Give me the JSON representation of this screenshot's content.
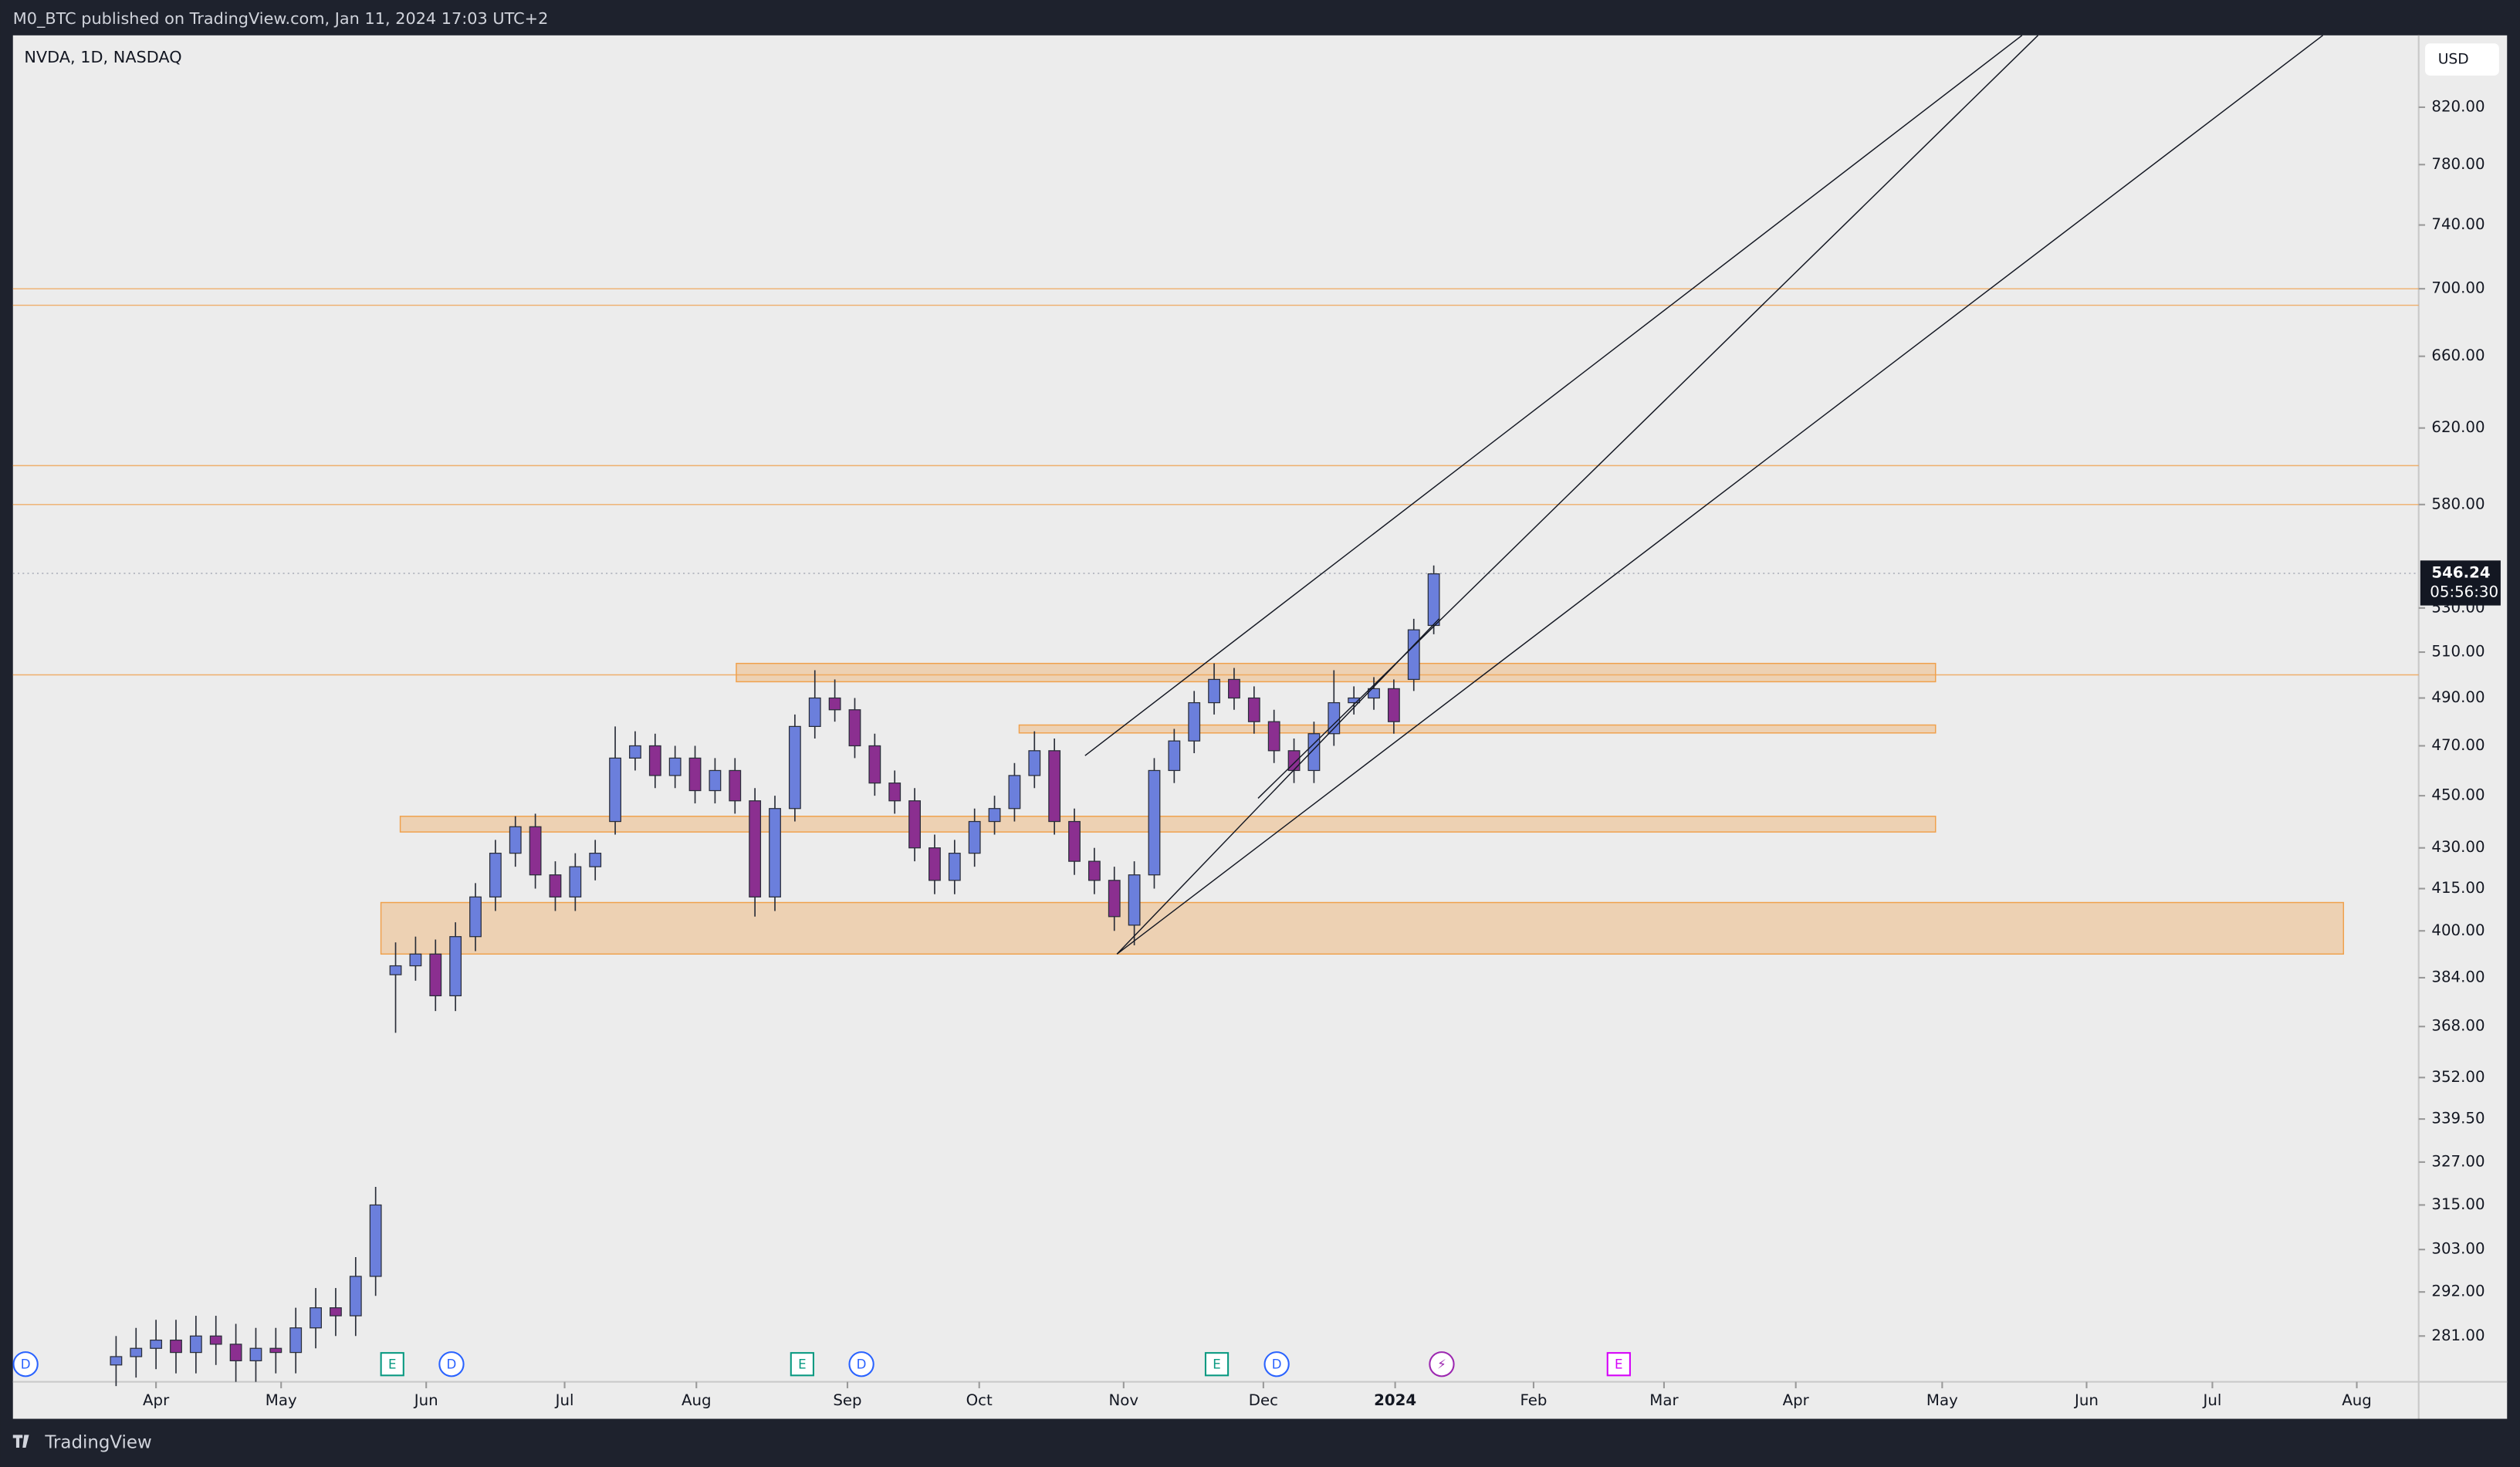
{
  "header": {
    "publisher": "M0_BTC published on TradingView.com, Jan 11, 2024 17:03 UTC+2"
  },
  "footer": {
    "brand": "TradingView"
  },
  "chart_data": {
    "type": "candlestick",
    "title": "NVDA, 1D, NASDAQ",
    "currency": "USD",
    "log_scale": true,
    "up_color": "#6b7fdc",
    "down_color": "#8b2f90",
    "x": [
      -6,
      -3,
      0,
      3,
      6,
      9,
      12,
      15,
      18,
      21,
      24,
      27,
      30,
      33,
      36,
      39,
      42,
      45,
      48,
      51,
      54,
      57,
      60,
      63,
      66,
      69,
      72,
      75,
      78,
      81,
      84,
      87,
      90,
      93,
      96,
      99,
      102,
      105,
      108,
      111,
      114,
      117,
      120,
      123,
      126,
      129,
      132,
      135,
      138,
      141,
      144,
      147,
      150,
      153,
      156,
      159,
      162,
      165,
      168,
      171,
      174,
      177,
      180,
      183,
      186,
      189,
      192
    ],
    "open": [
      274,
      276,
      278,
      280,
      277,
      281,
      279,
      275,
      278,
      277,
      283,
      288,
      286,
      296,
      385,
      388,
      392,
      378,
      398,
      412,
      428,
      438,
      420,
      412,
      423,
      440,
      465,
      470,
      458,
      465,
      452,
      460,
      448,
      412,
      445,
      478,
      490,
      485,
      470,
      455,
      448,
      430,
      418,
      428,
      440,
      445,
      458,
      468,
      440,
      425,
      418,
      402,
      420,
      460,
      472,
      488,
      498,
      490,
      480,
      468,
      460,
      475,
      488,
      490,
      494,
      498,
      522
    ],
    "high": [
      281,
      283,
      285,
      285,
      286,
      286,
      284,
      283,
      283,
      288,
      293,
      293,
      301,
      320,
      396,
      398,
      397,
      403,
      417,
      433,
      442,
      443,
      425,
      428,
      433,
      478,
      476,
      475,
      470,
      470,
      465,
      465,
      453,
      450,
      483,
      502,
      498,
      490,
      475,
      460,
      453,
      435,
      433,
      445,
      450,
      463,
      476,
      473,
      445,
      430,
      423,
      425,
      465,
      477,
      493,
      505,
      503,
      495,
      485,
      473,
      480,
      502,
      495,
      499,
      498,
      525,
      550
    ],
    "low": [
      269,
      271,
      273,
      272,
      272,
      274,
      270,
      270,
      272,
      272,
      278,
      281,
      281,
      291,
      366,
      383,
      373,
      373,
      393,
      407,
      423,
      415,
      407,
      407,
      418,
      435,
      460,
      453,
      453,
      447,
      447,
      443,
      405,
      407,
      440,
      473,
      480,
      465,
      450,
      443,
      425,
      413,
      413,
      423,
      435,
      440,
      453,
      435,
      420,
      413,
      400,
      395,
      415,
      455,
      467,
      483,
      485,
      475,
      463,
      455,
      455,
      470,
      483,
      485,
      475,
      493,
      518
    ],
    "close": [
      276,
      278,
      280,
      277,
      281,
      279,
      275,
      278,
      277,
      283,
      288,
      286,
      296,
      315,
      388,
      392,
      378,
      398,
      412,
      428,
      438,
      420,
      412,
      423,
      428,
      465,
      470,
      458,
      465,
      452,
      460,
      448,
      412,
      445,
      478,
      490,
      485,
      470,
      455,
      448,
      430,
      418,
      428,
      440,
      445,
      458,
      468,
      440,
      425,
      418,
      405,
      420,
      460,
      472,
      488,
      498,
      490,
      480,
      468,
      460,
      475,
      488,
      490,
      494,
      480,
      520,
      546
    ],
    "xlim": [
      -21.5,
      340
    ],
    "xticks": [
      {
        "value": 0,
        "label": "Apr"
      },
      {
        "value": 18.8,
        "label": "May"
      },
      {
        "value": 40.6,
        "label": "Jun"
      },
      {
        "value": 61.4,
        "label": "Jul"
      },
      {
        "value": 81.2,
        "label": "Aug"
      },
      {
        "value": 103.9,
        "label": "Sep"
      },
      {
        "value": 123.7,
        "label": "Oct"
      },
      {
        "value": 145.4,
        "label": "Nov"
      },
      {
        "value": 166.4,
        "label": "Dec"
      },
      {
        "value": 186.2,
        "label": "2024"
      },
      {
        "value": 207,
        "label": "Feb"
      },
      {
        "value": 226.6,
        "label": "Mar"
      },
      {
        "value": 246.4,
        "label": "Apr"
      },
      {
        "value": 268.4,
        "label": "May"
      },
      {
        "value": 290.1,
        "label": "Jun"
      },
      {
        "value": 309,
        "label": "Jul"
      },
      {
        "value": 330.7,
        "label": "Aug"
      }
    ],
    "ylim": [
      270,
      873
    ],
    "yticks": [
      {
        "value": 820,
        "label": "820.00"
      },
      {
        "value": 780,
        "label": "780.00"
      },
      {
        "value": 740,
        "label": "740.00"
      },
      {
        "value": 700,
        "label": "700.00"
      },
      {
        "value": 660,
        "label": "660.00"
      },
      {
        "value": 620,
        "label": "620.00"
      },
      {
        "value": 580,
        "label": "580.00"
      },
      {
        "value": 530,
        "label": "530.00"
      },
      {
        "value": 510,
        "label": "510.00"
      },
      {
        "value": 490,
        "label": "490.00"
      },
      {
        "value": 470,
        "label": "470.00"
      },
      {
        "value": 450,
        "label": "450.00"
      },
      {
        "value": 430,
        "label": "430.00"
      },
      {
        "value": 415,
        "label": "415.00"
      },
      {
        "value": 400,
        "label": "400.00"
      },
      {
        "value": 384,
        "label": "384.00"
      },
      {
        "value": 368,
        "label": "368.00"
      },
      {
        "value": 352,
        "label": "352.00"
      },
      {
        "value": 339.5,
        "label": "339.50"
      },
      {
        "value": 327,
        "label": "327.00"
      },
      {
        "value": 315,
        "label": "315.00"
      },
      {
        "value": 303,
        "label": "303.00"
      },
      {
        "value": 292,
        "label": "292.00"
      },
      {
        "value": 281,
        "label": "281.00"
      }
    ],
    "last_price": {
      "value": 546.24,
      "label": "546.24",
      "countdown": "05:56:30"
    },
    "zone_color": "#f0a04b",
    "zones": [
      {
        "x": [
          87.2,
          267.4
        ],
        "y": [
          497,
          505
        ]
      },
      {
        "x": [
          129.7,
          267.4
        ],
        "y": [
          475.3,
          478.6
        ]
      },
      {
        "x": [
          36.7,
          267.4
        ],
        "y": [
          436,
          442
        ]
      },
      {
        "x": [
          33.8,
          328.7
        ],
        "y": [
          392,
          410
        ]
      }
    ],
    "levels": [
      700,
      690,
      600,
      580,
      500
    ],
    "trendlines": [
      {
        "x": [
          139.6,
          280.4
        ],
        "y": [
          466,
          873
        ]
      },
      {
        "x": [
          165.6,
          282.8
        ],
        "y": [
          449,
          873
        ]
      },
      {
        "x": [
          144.4,
          325.6
        ],
        "y": [
          392,
          873
        ]
      },
      {
        "x": [
          144.4,
          192.8
        ],
        "y": [
          392,
          525
        ]
      }
    ],
    "events": [
      {
        "label": "D",
        "x": -19.6
      },
      {
        "label": "E",
        "x": 35.5
      },
      {
        "label": "D",
        "x": 44.4
      },
      {
        "label": "E",
        "x": 97.1
      },
      {
        "label": "D",
        "x": 106
      },
      {
        "label": "E",
        "x": 159.4
      },
      {
        "label": "D",
        "x": 168.4
      },
      {
        "label": "⚡",
        "x": 193.2
      },
      {
        "label": "E",
        "x": 219.8
      }
    ]
  }
}
